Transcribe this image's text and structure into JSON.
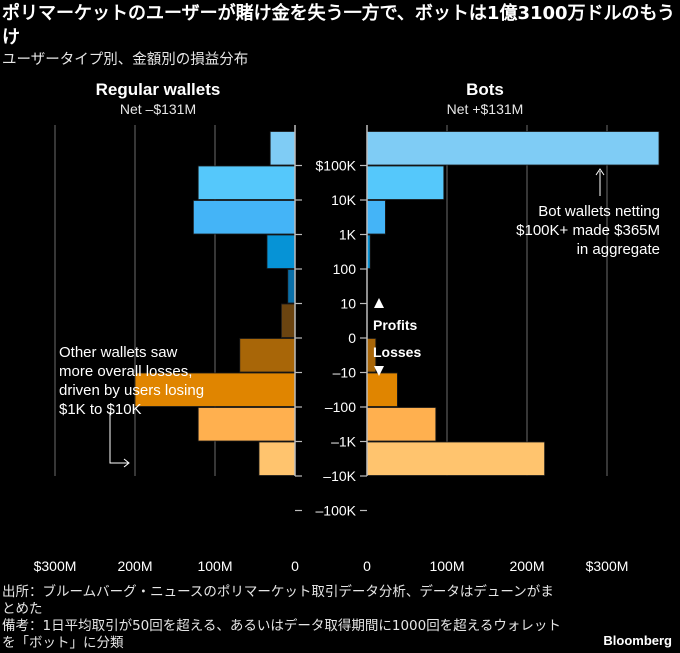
{
  "title": "ポリマーケットのユーザーが賭け金を失う一方で、ボットは1億3100万ドルのもうけ",
  "subtitle": "ユーザータイプ別、金額別の損益分布",
  "footer": {
    "source": "出所：ブルームバーグ・ニュースのポリマーケット取引データ分析、データはデューンがまとめた",
    "note": "備考：1日平均取引が50回を超える、あるいはデータ取得期間に1000回を超えるウォレットを「ボット」に分類",
    "brand": "Bloomberg"
  },
  "colors": {
    "profit": [
      "#7fccf5",
      "#55c8fb",
      "#44b4f7",
      "#0693d6",
      "#0a6fa8"
    ],
    "loss": [
      "#6b4410",
      "#a86608",
      "#e08500",
      "#ffb04f",
      "#ffc46e"
    ],
    "grid": "#5a5a5a",
    "axis": "#bdbdbd"
  },
  "chart_data": {
    "type": "bar",
    "orientation": "horizontal-mirrored",
    "y_tick_labels": [
      "$100K",
      "10K",
      "1K",
      "100",
      "10",
      "0",
      "–10",
      "–100",
      "–1K",
      "–10K",
      "–100K"
    ],
    "bins": [
      "$100K+",
      "10K–100K",
      "1K–10K",
      "100–1K",
      "10–100",
      "–10 to –100",
      "–100 to –1K",
      "–1K to –10K",
      "–10K to –100K",
      "< –100K"
    ],
    "direction_labels": {
      "profits": "Profits",
      "losses": "Losses"
    },
    "series": [
      {
        "name": "Regular wallets",
        "subtitle": "Net –$131M",
        "side": "left",
        "profit_values": [
          31,
          121,
          127,
          35,
          9
        ],
        "loss_values": [
          17,
          69,
          200,
          121,
          45
        ],
        "x_ticks": [
          "$300M",
          "200M",
          "100M",
          "0"
        ],
        "xlim": [
          0,
          300
        ],
        "annotation": [
          "Other wallets saw",
          "more overall losses,",
          "driven by users losing",
          "$1K to $10K"
        ]
      },
      {
        "name": "Bots",
        "subtitle": "Net +$131M",
        "side": "right",
        "profit_values": [
          365,
          96,
          23,
          4,
          0
        ],
        "loss_values": [
          0,
          11,
          38,
          86,
          222
        ],
        "x_ticks": [
          "0",
          "100M",
          "200M",
          "$300M"
        ],
        "xlim": [
          0,
          365
        ],
        "annotation": [
          "Bot wallets netting",
          "$100K+ made $365M",
          "in aggregate"
        ]
      }
    ],
    "units": "USD millions",
    "grid": true
  }
}
